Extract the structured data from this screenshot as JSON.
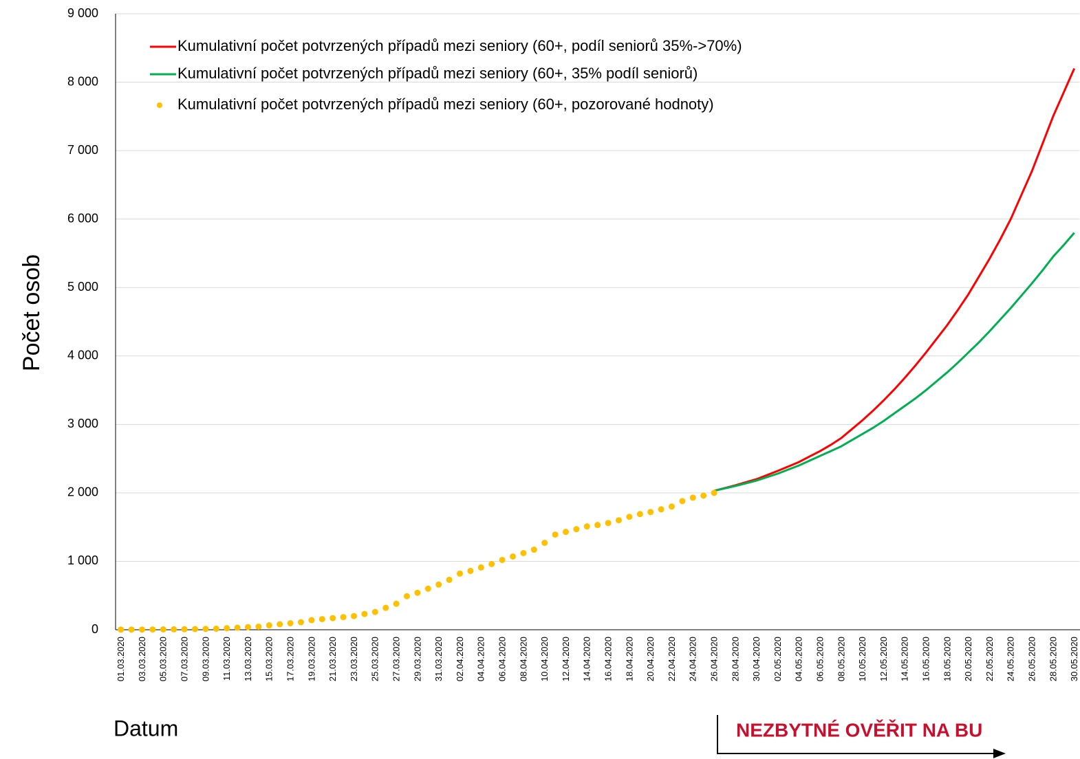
{
  "chart_data": {
    "type": "line",
    "y_label": "Počet osob",
    "x_label": "Datum",
    "annotation": "NEZBYTNÉ OVĚŘIT NA BU",
    "categories": [
      "01.03.2020",
      null,
      "03.03.2020",
      null,
      "05.03.2020",
      null,
      "07.03.2020",
      null,
      "09.03.2020",
      null,
      "11.03.2020",
      null,
      "13.03.2020",
      null,
      "15.03.2020",
      null,
      "17.03.2020",
      null,
      "19.03.2020",
      null,
      "21.03.2020",
      null,
      "23.03.2020",
      null,
      "25.03.2020",
      null,
      "27.03.2020",
      null,
      "29.03.2020",
      null,
      "31.03.2020",
      null,
      "02.04.2020",
      null,
      "04.04.2020",
      null,
      "06.04.2020",
      null,
      "08.04.2020",
      null,
      "10.04.2020",
      null,
      "12.04.2020",
      null,
      "14.04.2020",
      null,
      "16.04.2020",
      null,
      "18.04.2020",
      null,
      "20.04.2020",
      null,
      "22.04.2020",
      null,
      "24.04.2020",
      null,
      "26.04.2020",
      null,
      "28.04.2020",
      null,
      "30.04.2020",
      null,
      "02.05.2020",
      null,
      "04.05.2020",
      null,
      "06.05.2020",
      null,
      "08.05.2020",
      null,
      "10.05.2020",
      null,
      "12.05.2020",
      null,
      "14.05.2020",
      null,
      "16.05.2020",
      null,
      "18.05.2020",
      null,
      "20.05.2020",
      null,
      "22.05.2020",
      null,
      "24.05.2020",
      null,
      "26.05.2020",
      null,
      "28.05.2020",
      null,
      "30.05.2020"
    ],
    "ylim": [
      0,
      9000
    ],
    "yticks": [
      0,
      {
        "value": 1000,
        "label": "1 000"
      },
      {
        "value": 2000,
        "label": "2 000"
      },
      {
        "value": 3000,
        "label": "3 000"
      },
      {
        "value": 4000,
        "label": "4 000"
      },
      {
        "value": 5000,
        "label": "5 000"
      },
      {
        "value": 6000,
        "label": "6 000"
      },
      {
        "value": 7000,
        "label": "7 000"
      },
      {
        "value": 8000,
        "label": "8 000"
      },
      {
        "value": 9000,
        "label": "9 000"
      }
    ],
    "grid": true,
    "series": [
      {
        "name": "Kumulativní počet potvrzených případů mezi seniory (60+, podíl seniorů 35%->70%)",
        "color": "#ff0000",
        "marker": "line",
        "values": [
          null,
          null,
          null,
          null,
          null,
          null,
          null,
          null,
          null,
          null,
          null,
          null,
          null,
          null,
          null,
          null,
          null,
          null,
          null,
          null,
          null,
          null,
          null,
          null,
          null,
          null,
          null,
          null,
          null,
          null,
          null,
          null,
          null,
          null,
          null,
          null,
          null,
          null,
          null,
          null,
          null,
          null,
          null,
          null,
          null,
          null,
          null,
          null,
          null,
          null,
          null,
          null,
          null,
          null,
          null,
          null,
          2030,
          2070,
          2110,
          2155,
          2200,
          2260,
          2320,
          2385,
          2450,
          2530,
          2610,
          2700,
          2800,
          2930,
          3060,
          3200,
          3350,
          3510,
          3680,
          3860,
          4050,
          4250,
          4450,
          4670,
          4900,
          5160,
          5420,
          5700,
          6000,
          6350,
          6700,
          7100,
          7500,
          7850,
          8200
        ]
      },
      {
        "name": "Kumulativní počet potvrzených případů mezi seniory (60+, 35% podíl seniorů)",
        "color": "#00b050",
        "marker": "line",
        "values": [
          null,
          null,
          null,
          null,
          null,
          null,
          null,
          null,
          null,
          null,
          null,
          null,
          null,
          null,
          null,
          null,
          null,
          null,
          null,
          null,
          null,
          null,
          null,
          null,
          null,
          null,
          null,
          null,
          null,
          null,
          null,
          null,
          null,
          null,
          null,
          null,
          null,
          null,
          null,
          null,
          null,
          null,
          null,
          null,
          null,
          null,
          null,
          null,
          null,
          null,
          null,
          null,
          null,
          null,
          null,
          null,
          2030,
          2065,
          2100,
          2140,
          2180,
          2230,
          2280,
          2340,
          2400,
          2470,
          2540,
          2610,
          2680,
          2770,
          2860,
          2950,
          3050,
          3160,
          3270,
          3380,
          3500,
          3630,
          3760,
          3900,
          4050,
          4200,
          4360,
          4530,
          4700,
          4880,
          5060,
          5250,
          5450,
          5620,
          5800
        ]
      },
      {
        "name": "Kumulativní počet potvrzených případů mezi seniory (60+, pozorované hodnoty)",
        "color": "#ffc000",
        "marker": "dot",
        "values": [
          3,
          3,
          3,
          4,
          5,
          6,
          8,
          10,
          12,
          15,
          22,
          30,
          38,
          45,
          65,
          80,
          95,
          110,
          140,
          155,
          170,
          185,
          200,
          230,
          260,
          320,
          380,
          490,
          540,
          600,
          660,
          730,
          820,
          860,
          910,
          960,
          1020,
          1070,
          1120,
          1170,
          1270,
          1390,
          1430,
          1470,
          1510,
          1530,
          1560,
          1600,
          1650,
          1690,
          1720,
          1760,
          1800,
          1880,
          1930,
          1960,
          2000,
          null,
          null,
          null,
          null,
          null,
          null,
          null,
          null,
          null,
          null,
          null,
          null,
          null,
          null,
          null,
          null,
          null,
          null,
          null,
          null,
          null,
          null,
          null,
          null,
          null,
          null,
          null,
          null,
          null,
          null,
          null,
          null,
          null,
          null
        ]
      }
    ]
  }
}
